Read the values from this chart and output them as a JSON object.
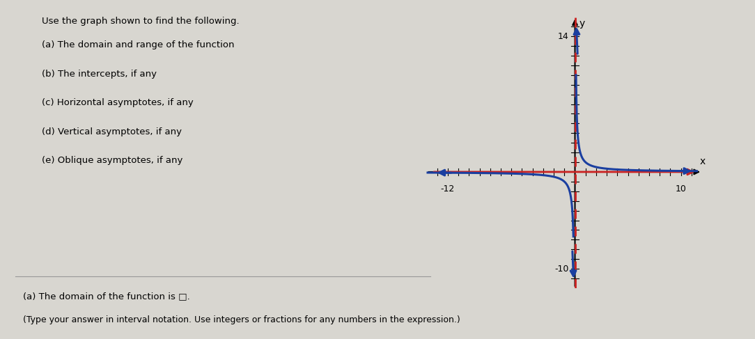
{
  "title_text": "Use the graph shown to find the following.",
  "instructions": [
    "(a) The domain and range of the function",
    "(b) The intercepts, if any",
    "(c) Horizontal asymptotes, if any",
    "(d) Vertical asymptotes, if any",
    "(e) Oblique asymptotes, if any"
  ],
  "footer_lines": [
    "(a) The domain of the function is □.",
    "(Type your answer in interval notation. Use integers or fractions for any numbers in the expression.)"
  ],
  "graph": {
    "xlim": [
      -14,
      12
    ],
    "ylim": [
      -12,
      16
    ],
    "xtick_label_neg": -12,
    "xtick_label_pos": 10,
    "ytick_label_pos": 14,
    "ytick_label_neg": -10,
    "curve_color": "#1b3fa0",
    "asymptote_color": "#cc2222",
    "bg_color": "#e8e8e8",
    "axis_color": "black"
  }
}
